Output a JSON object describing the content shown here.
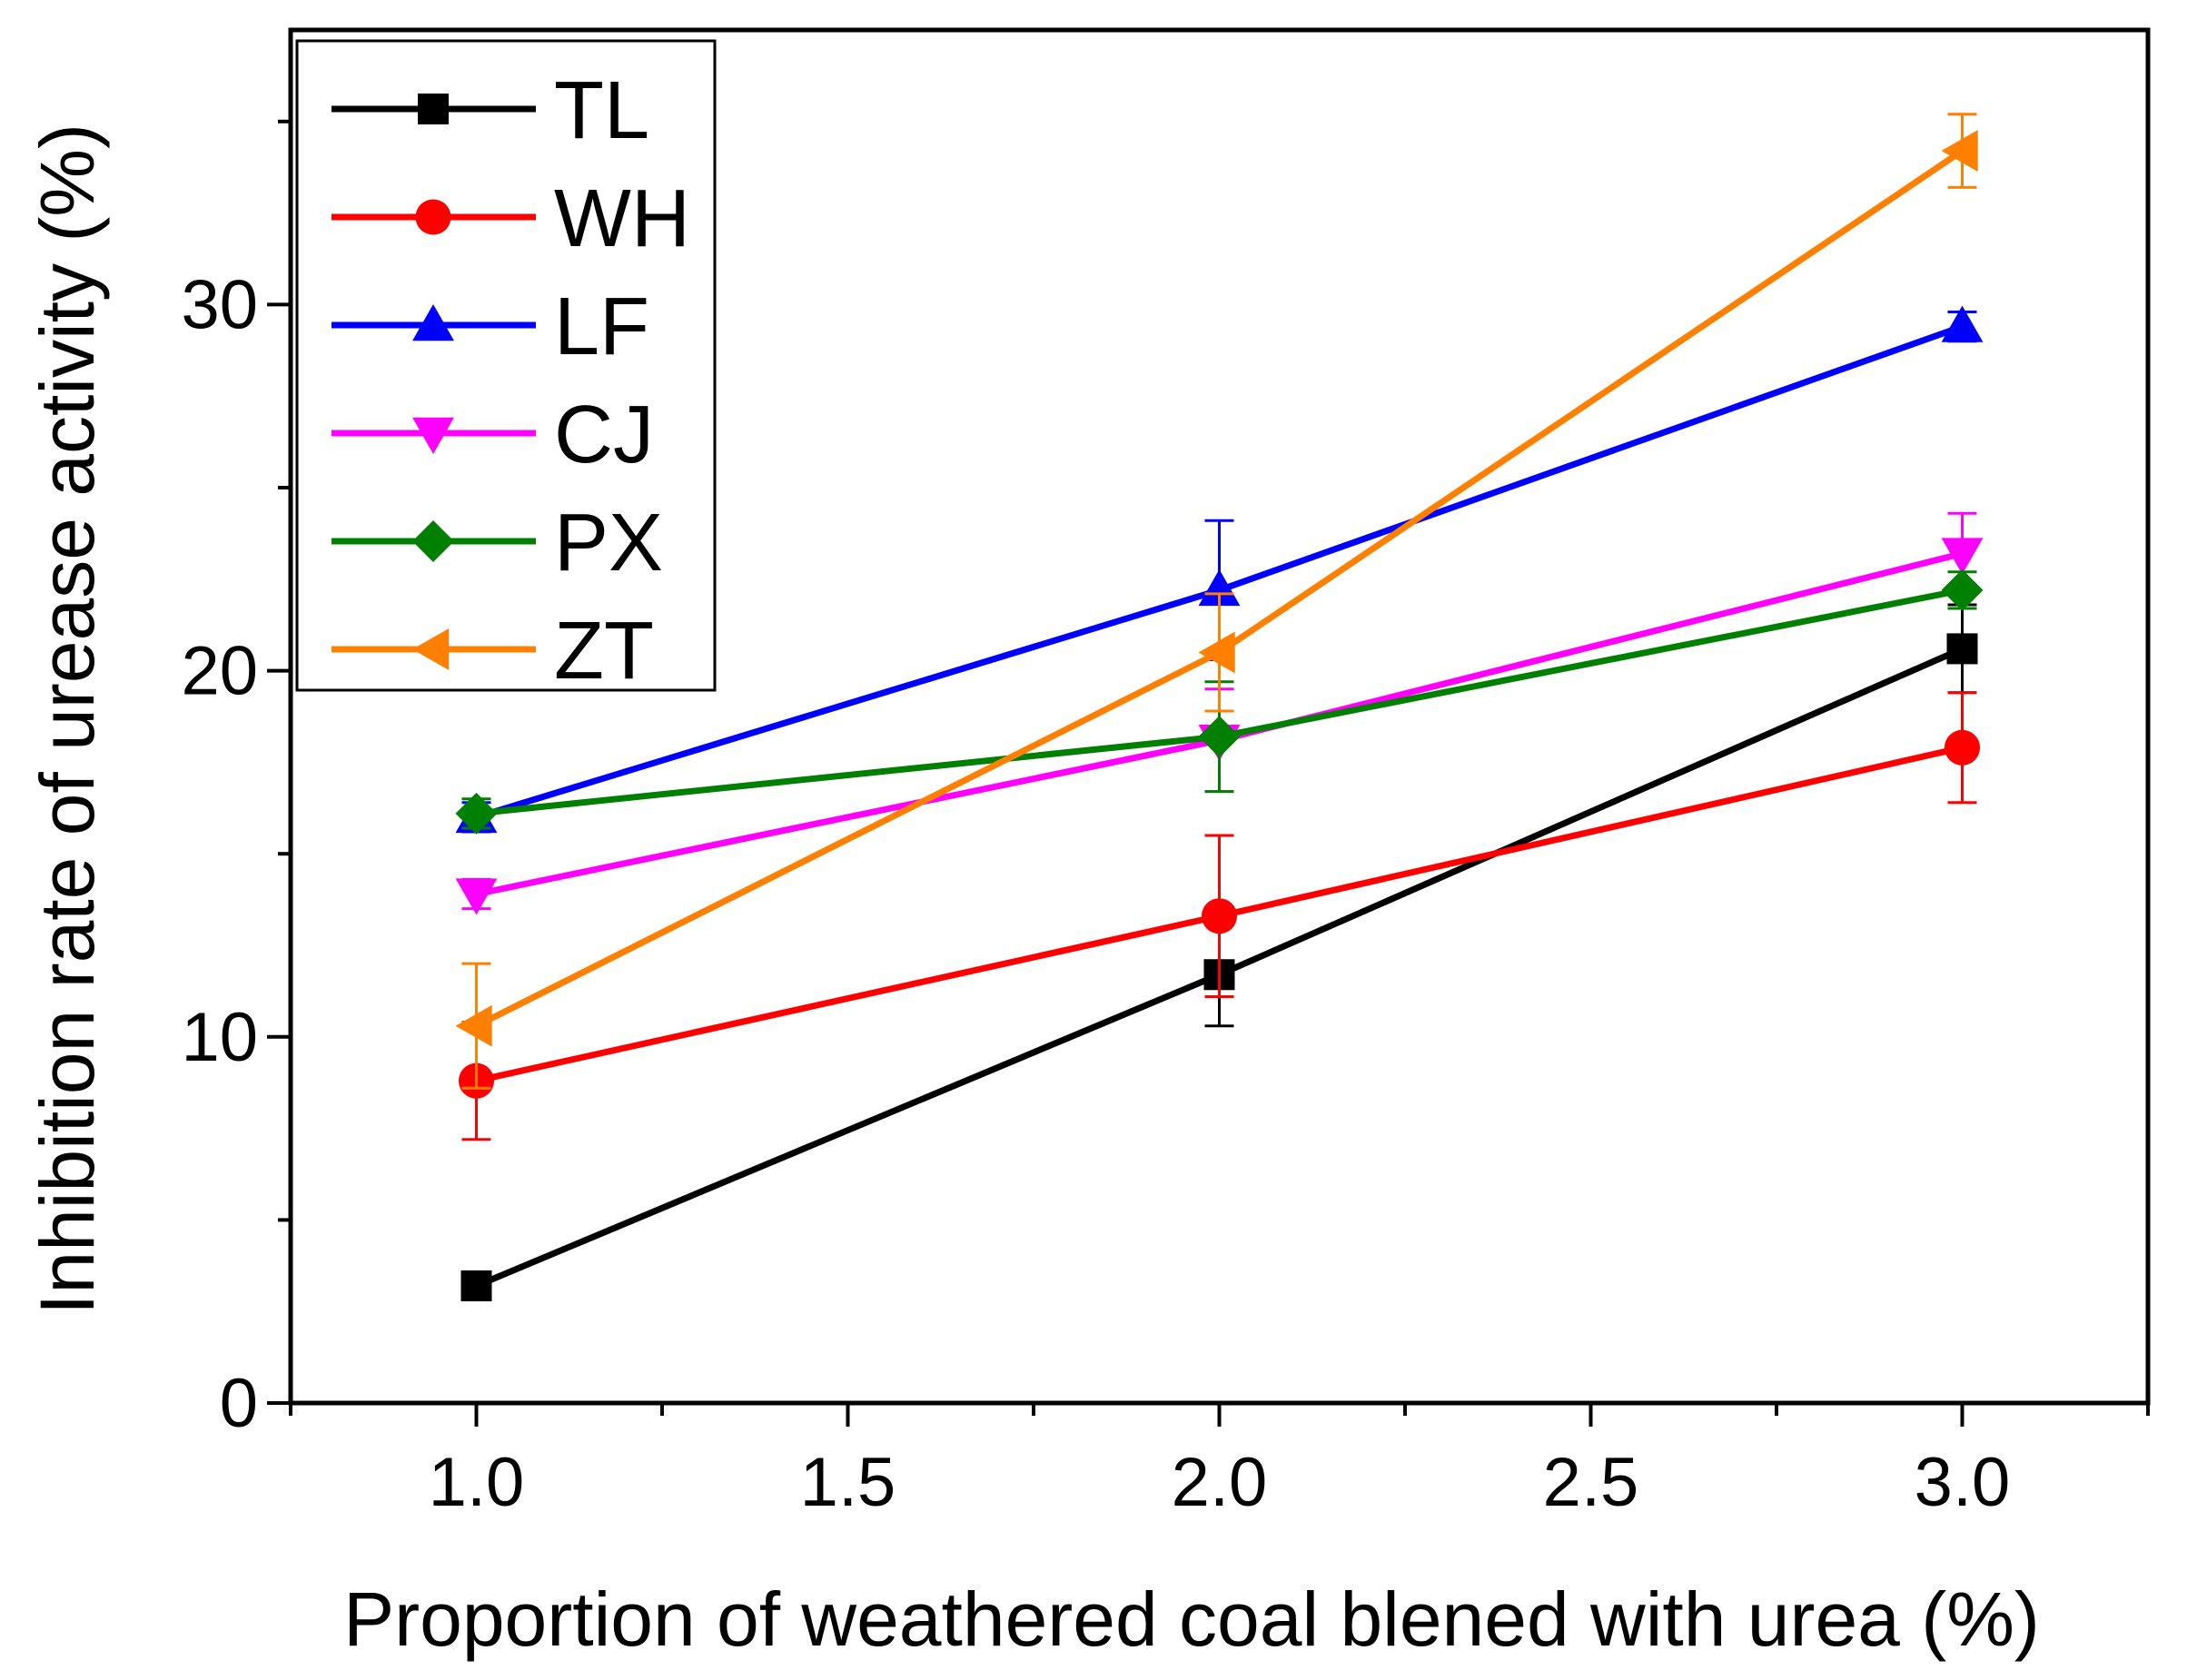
{
  "chart_data": {
    "type": "line",
    "xlabel": "Proportion of weathered coal blened with urea  (%)",
    "ylabel": "Inhibition rate of urease activity (%)",
    "xlim": [
      0.75,
      3.25
    ],
    "ylim": [
      0,
      37.5
    ],
    "xticks": [
      1.0,
      1.5,
      2.0,
      2.5,
      3.0
    ],
    "xtick_labels": [
      "1.0",
      "1.5",
      "2.0",
      "2.5",
      "3.0"
    ],
    "yticks": [
      0,
      10,
      20,
      30
    ],
    "ytick_labels": [
      "0",
      "10",
      "20",
      "30"
    ],
    "x": [
      1.0,
      2.0,
      3.0
    ],
    "legend_position": "top-left",
    "series": [
      {
        "name": "TL",
        "color": "#000000",
        "marker": "square",
        "values": [
          3.2,
          11.7,
          20.6
        ],
        "errors": [
          0.0,
          1.4,
          1.2
        ]
      },
      {
        "name": "WH",
        "color": "#ff0000",
        "marker": "circle",
        "values": [
          8.8,
          13.3,
          17.9
        ],
        "errors": [
          1.6,
          2.2,
          1.5
        ]
      },
      {
        "name": "LF",
        "color": "#0000ff",
        "marker": "triangle-up",
        "values": [
          16.0,
          22.2,
          29.4
        ],
        "errors": [
          0.4,
          1.9,
          0.4
        ]
      },
      {
        "name": "CJ",
        "color": "#ff00ff",
        "marker": "triangle-down",
        "values": [
          13.9,
          18.1,
          23.2
        ],
        "errors": [
          0.4,
          1.4,
          1.1
        ]
      },
      {
        "name": "PX",
        "color": "#008000",
        "marker": "diamond",
        "values": [
          16.1,
          18.2,
          22.2
        ],
        "errors": [
          0.4,
          1.5,
          0.5
        ]
      },
      {
        "name": "ZT",
        "color": "#ff8000",
        "marker": "triangle-left",
        "values": [
          10.3,
          20.5,
          34.2
        ],
        "errors": [
          1.7,
          1.6,
          1.0
        ]
      }
    ]
  }
}
